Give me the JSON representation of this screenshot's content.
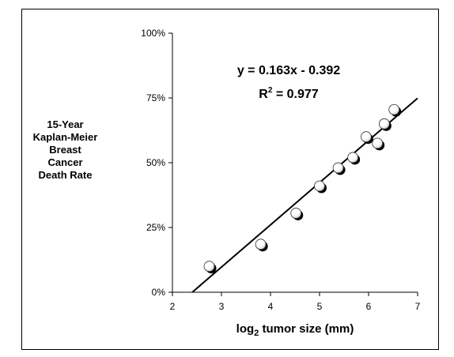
{
  "chart_data": {
    "type": "scatter",
    "title": "",
    "ylabel_lines": [
      "15-Year",
      "Kaplan-Meier",
      "Breast",
      "Cancer",
      "Death Rate"
    ],
    "xlabel": {
      "prefix": "log",
      "subscript": "2",
      "suffix": " tumor size (mm)"
    },
    "xlim": [
      2,
      7
    ],
    "ylim": [
      0,
      1
    ],
    "x_ticks": [
      2,
      3,
      4,
      5,
      6,
      7
    ],
    "x_tick_labels": [
      "2",
      "3",
      "4",
      "5",
      "6",
      "7"
    ],
    "y_ticks": [
      0,
      0.25,
      0.5,
      0.75,
      1.0
    ],
    "y_tick_labels": [
      "0%",
      "25%",
      "50%",
      "75%",
      "100%"
    ],
    "grid": false,
    "points": [
      {
        "x": 2.75,
        "y": 0.1
      },
      {
        "x": 3.8,
        "y": 0.185
      },
      {
        "x": 4.52,
        "y": 0.305
      },
      {
        "x": 5.0,
        "y": 0.41
      },
      {
        "x": 5.38,
        "y": 0.48
      },
      {
        "x": 5.68,
        "y": 0.52
      },
      {
        "x": 5.95,
        "y": 0.6
      },
      {
        "x": 6.18,
        "y": 0.575
      },
      {
        "x": 6.32,
        "y": 0.65
      },
      {
        "x": 6.52,
        "y": 0.705
      }
    ],
    "trendline": {
      "slope": 0.163,
      "intercept": -0.392
    },
    "equation_text": "y = 0.163x - 0.392",
    "r2_text": {
      "prefix": "R",
      "superscript": "2",
      "suffix": " = 0.977"
    }
  }
}
